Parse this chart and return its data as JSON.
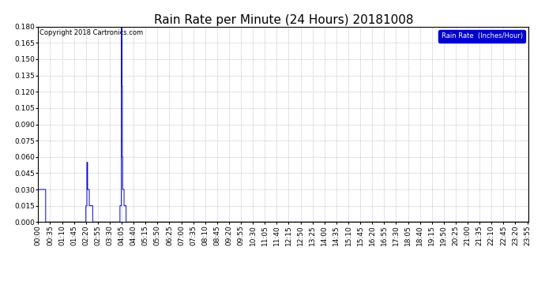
{
  "title": "Rain Rate per Minute (24 Hours) 20181008",
  "ylabel": "Rain Rate  (Inches/Hour)",
  "copyright_text": "Copyright 2018 Cartronics.com",
  "line_color": "#0000dd",
  "background_color": "#ffffff",
  "plot_bg_color": "#ffffff",
  "legend_bg_color": "#0000cc",
  "legend_text_color": "#ffffff",
  "ylim": [
    0.0,
    0.18
  ],
  "yticks": [
    0.0,
    0.015,
    0.03,
    0.045,
    0.06,
    0.075,
    0.09,
    0.105,
    0.12,
    0.135,
    0.15,
    0.165,
    0.18
  ],
  "grid_color": "#bbbbbb",
  "title_fontsize": 11,
  "tick_fontsize": 6.5,
  "total_minutes": 1440,
  "x_tick_interval": 35
}
